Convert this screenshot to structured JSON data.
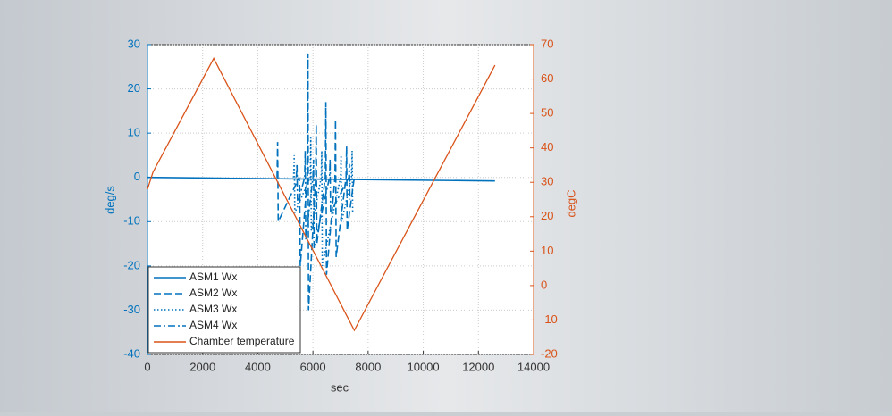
{
  "chart_data": {
    "type": "line",
    "xlabel": "sec",
    "ylabel": "deg/s",
    "y2label": "degC",
    "xlim": [
      0,
      14000
    ],
    "xticks": [
      0,
      2000,
      4000,
      6000,
      8000,
      10000,
      12000,
      14000
    ],
    "ylim": [
      -40,
      30
    ],
    "yticks": [
      -40,
      -30,
      -20,
      -10,
      0,
      10,
      20,
      30
    ],
    "y2lim": [
      -20,
      70
    ],
    "y2ticks": [
      -20,
      -10,
      0,
      10,
      20,
      30,
      40,
      50,
      60,
      70
    ],
    "grid": true,
    "legend": "lower left",
    "series": [
      {
        "name": "ASM1 Wx",
        "color": "#0072bd",
        "linestyle": "solid",
        "x": [
          0,
          12600
        ],
        "values": [
          0,
          -0.8
        ]
      },
      {
        "name": "ASM2 Wx",
        "color": "#0072bd",
        "linestyle": "dashed",
        "x": [
          4700,
          4720,
          4740,
          5500,
          5520,
          5540,
          5800,
          5820,
          5840,
          6100,
          6120,
          6140,
          6450,
          6470,
          6490,
          6800,
          6820,
          6840,
          7200,
          7220,
          7240,
          7500
        ],
        "values": [
          0,
          8,
          -10,
          0,
          -2,
          -20,
          0,
          28,
          -30,
          0,
          12,
          -15,
          0,
          17,
          -22,
          0,
          13,
          -18,
          0,
          7,
          -12,
          0
        ]
      },
      {
        "name": "ASM3 Wx",
        "color": "#0072bd",
        "linestyle": "dotted",
        "x": [
          5300,
          5320,
          5340,
          5900,
          5920,
          5940,
          6300,
          6320,
          6340,
          7000,
          7020,
          7040,
          7400,
          7420,
          7440
        ],
        "values": [
          0,
          5,
          -8,
          0,
          9,
          -12,
          0,
          6,
          -20,
          0,
          5,
          -10,
          0,
          6,
          -8
        ]
      },
      {
        "name": "ASM4 Wx",
        "color": "#0072bd",
        "linestyle": "dashdot",
        "x": [
          5400,
          5420,
          5440,
          5700,
          5720,
          5740,
          6000,
          6020,
          6040,
          6600,
          6620,
          6640,
          7300,
          7320,
          7340
        ],
        "values": [
          0,
          3,
          -6,
          0,
          6,
          -14,
          0,
          4,
          -16,
          0,
          4,
          -8,
          0,
          3,
          -5
        ]
      },
      {
        "name": "Chamber temperature",
        "color": "#d95319",
        "linestyle": "solid",
        "axis": "y2",
        "x": [
          0,
          200,
          2400,
          7500,
          12600
        ],
        "values": [
          28,
          33,
          66,
          -13,
          64
        ]
      }
    ]
  }
}
